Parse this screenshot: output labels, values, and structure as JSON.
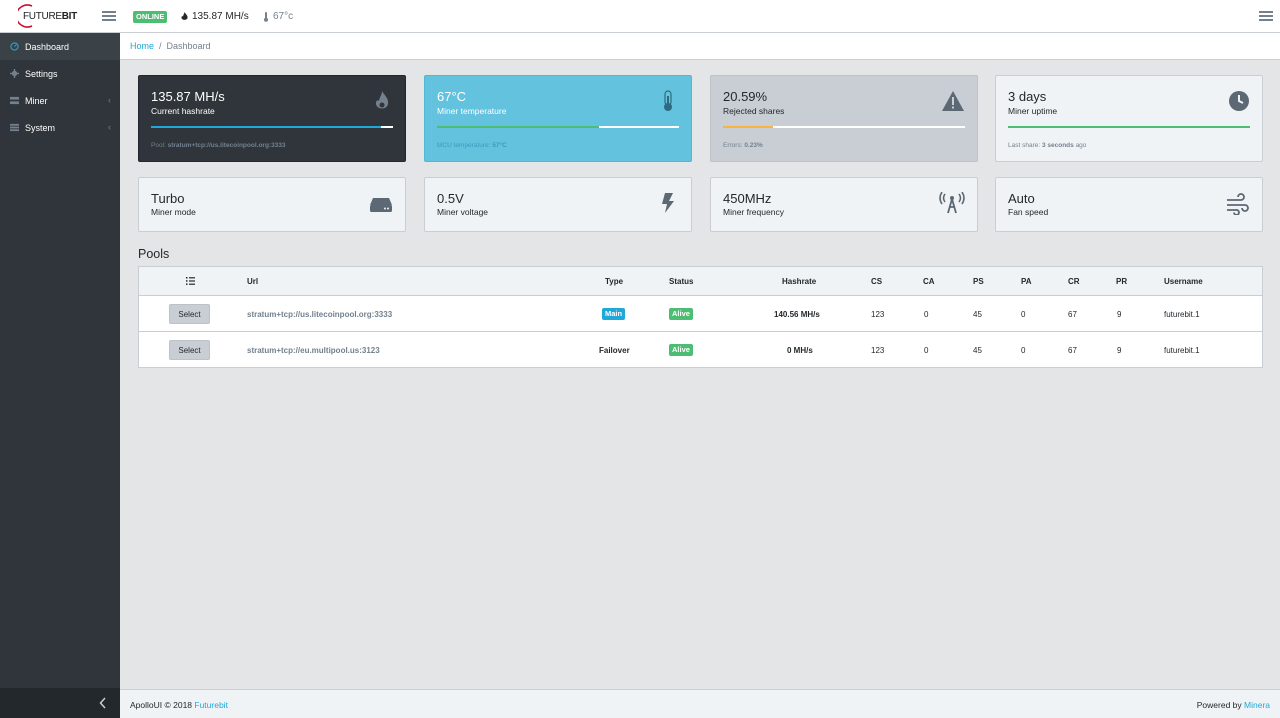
{
  "header": {
    "logo_text_a": "FUTURE",
    "logo_text_b": "BIT",
    "status": "ONLINE",
    "hashrate": "135.87 MH/s",
    "temperature": "67°c"
  },
  "sidebar": {
    "items": [
      {
        "label": "Dashboard",
        "icon": "speedometer-icon",
        "active": true
      },
      {
        "label": "Settings",
        "icon": "gear-icon"
      },
      {
        "label": "Miner",
        "icon": "server-icon",
        "caret": "‹"
      },
      {
        "label": "System",
        "icon": "list-icon",
        "caret": "‹"
      }
    ]
  },
  "breadcrumb": {
    "home": "Home",
    "sep": "/",
    "current": "Dashboard"
  },
  "cards": [
    {
      "value": "135.87 MH/s",
      "label": "Current hashrate",
      "foot_prefix": "Pool: ",
      "foot_value": "stratum+tcp://us.litecoinpool.org:3333",
      "foot_suffix": "",
      "progress": 0.95,
      "bar_color": "#20a8d8",
      "bg": "#2f353a",
      "icon": "flame-icon"
    },
    {
      "value": "67°C",
      "label": "Miner temperature",
      "foot_prefix": "MCU temperature: ",
      "foot_value": "57°C",
      "foot_suffix": "",
      "progress": 0.67,
      "bar_color": "#4dbd74",
      "bg": "#63c2de",
      "icon": "thermometer-icon"
    },
    {
      "value": "20.59%",
      "label": "Rejected shares",
      "foot_prefix": "Errors: ",
      "foot_value": "0.23%",
      "foot_suffix": "",
      "progress": 0.2059,
      "bar_color": "#f8b43d",
      "bg": "#c8ced3",
      "icon": "warning-icon"
    },
    {
      "value": "3 days",
      "label": "Miner uptime",
      "foot_prefix": "Last share: ",
      "foot_value": "3 seconds",
      "foot_suffix": " ago",
      "progress": 1.0,
      "bar_color": "#4dbd74",
      "bg": "#f0f3f5",
      "icon": "clock-icon"
    }
  ],
  "cards2": [
    {
      "value": "Turbo",
      "label": "Miner mode",
      "icon": "hdd-icon"
    },
    {
      "value": "0.5V",
      "label": "Miner voltage",
      "icon": "bolt-icon"
    },
    {
      "value": "450MHz",
      "label": "Miner frequency",
      "icon": "antenna-icon"
    },
    {
      "value": "Auto",
      "label": "Fan speed",
      "icon": "wind-icon"
    }
  ],
  "pools": {
    "title": "Pools",
    "headers": [
      "Url",
      "Type",
      "Status",
      "Hashrate",
      "CS",
      "CA",
      "PS",
      "PA",
      "CR",
      "PR",
      "Username"
    ],
    "rows": [
      {
        "button": "Select",
        "url": "stratum+tcp://us.litecoinpool.org:3333",
        "type": "Main",
        "status": "Alive",
        "hashrate": "140.56 MH/s",
        "cs": "123",
        "ca": "0",
        "ps": "45",
        "pa": "0",
        "cr": "67",
        "pr": "9",
        "username": "futurebit.1"
      },
      {
        "button": "Select",
        "url": "stratum+tcp://eu.multipool.us:3123",
        "type": "Failover",
        "status": "Alive",
        "hashrate": "0 MH/s",
        "cs": "123",
        "ca": "0",
        "ps": "45",
        "pa": "0",
        "cr": "67",
        "pr": "9",
        "username": "futurebit.1"
      }
    ]
  },
  "footer": {
    "left_text": "ApolloUI © 2018 ",
    "left_link": "Futurebit",
    "right_text": "Powered by ",
    "right_link": "Minera"
  }
}
